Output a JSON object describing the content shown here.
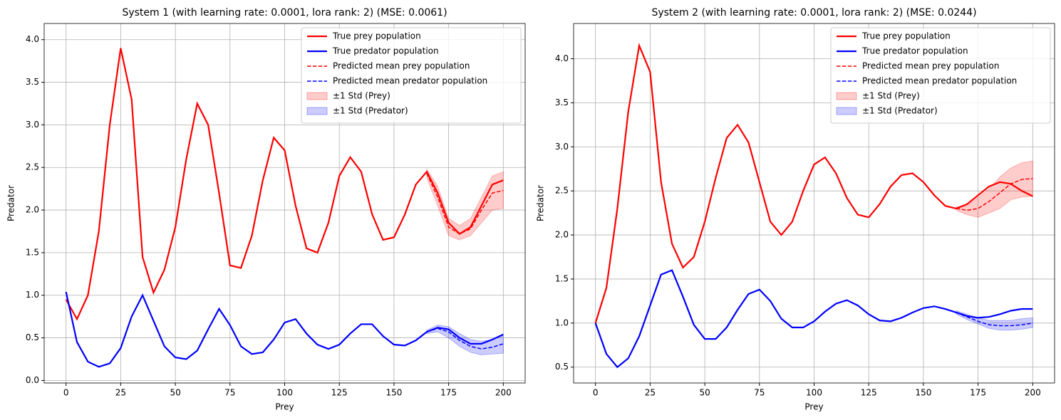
{
  "chart_data": [
    {
      "type": "line",
      "title": "System 1 (with learning rate: 0.0001, lora rank: 2) (MSE: 0.0061)",
      "xlabel": "Prey",
      "ylabel": "Predator",
      "x": [
        0,
        5,
        10,
        15,
        20,
        25,
        30,
        35,
        40,
        45,
        50,
        55,
        60,
        65,
        70,
        75,
        80,
        85,
        90,
        95,
        100,
        105,
        110,
        115,
        120,
        125,
        130,
        135,
        140,
        145,
        150,
        155,
        160,
        165,
        170,
        175,
        180,
        185,
        190,
        195,
        200
      ],
      "xlim": [
        -10,
        210
      ],
      "xticks": [
        0,
        25,
        50,
        75,
        100,
        125,
        150,
        175,
        200
      ],
      "ylim": [
        -0.03,
        4.19
      ],
      "yticks": [
        {
          "value": 0,
          "label": "0.0"
        },
        {
          "value": 0.5,
          "label": "0.5"
        },
        {
          "value": 1,
          "label": "1.0"
        },
        {
          "value": 1.5,
          "label": "1.5"
        },
        {
          "value": 2,
          "label": "2.0"
        },
        {
          "value": 2.5,
          "label": "2.5"
        },
        {
          "value": 3,
          "label": "3.0"
        },
        {
          "value": 3.5,
          "label": "3.5"
        },
        {
          "value": 4,
          "label": "4.0"
        }
      ],
      "grid": true,
      "legend": "upper right",
      "series": [
        {
          "name": "True prey population",
          "color": "#ff0000",
          "style": "solid",
          "values": [
            0.95,
            0.72,
            1.0,
            1.75,
            3.0,
            3.9,
            3.3,
            1.45,
            1.03,
            1.3,
            1.8,
            2.6,
            3.25,
            3.0,
            2.2,
            1.35,
            1.32,
            1.7,
            2.35,
            2.85,
            2.7,
            2.05,
            1.55,
            1.5,
            1.85,
            2.4,
            2.62,
            2.45,
            1.95,
            1.65,
            1.68,
            1.95,
            2.3,
            2.45,
            2.2,
            1.85,
            1.72,
            1.8,
            2.05,
            2.3,
            2.35
          ]
        },
        {
          "name": "True predator population",
          "color": "#0000ff",
          "style": "solid",
          "values": [
            1.04,
            0.45,
            0.22,
            0.16,
            0.2,
            0.38,
            0.75,
            1.0,
            0.7,
            0.4,
            0.27,
            0.25,
            0.35,
            0.6,
            0.84,
            0.65,
            0.4,
            0.31,
            0.33,
            0.48,
            0.68,
            0.72,
            0.55,
            0.42,
            0.37,
            0.42,
            0.55,
            0.66,
            0.66,
            0.52,
            0.42,
            0.41,
            0.47,
            0.57,
            0.62,
            0.6,
            0.5,
            0.43,
            0.43,
            0.48,
            0.54
          ]
        },
        {
          "name": "Predicted mean prey population",
          "color": "#ff0000",
          "style": "dashed",
          "values": [
            null,
            null,
            null,
            null,
            null,
            null,
            null,
            null,
            null,
            null,
            null,
            null,
            null,
            null,
            null,
            null,
            null,
            null,
            null,
            null,
            null,
            null,
            null,
            null,
            null,
            null,
            null,
            null,
            null,
            null,
            null,
            null,
            null,
            2.43,
            2.15,
            1.8,
            1.72,
            1.78,
            2.0,
            2.2,
            2.23
          ]
        },
        {
          "name": "Predicted mean predator population",
          "color": "#0000ff",
          "style": "dashed",
          "values": [
            null,
            null,
            null,
            null,
            null,
            null,
            null,
            null,
            null,
            null,
            null,
            null,
            null,
            null,
            null,
            null,
            null,
            null,
            null,
            null,
            null,
            null,
            null,
            null,
            null,
            null,
            null,
            null,
            null,
            null,
            null,
            null,
            null,
            0.57,
            0.61,
            0.57,
            0.47,
            0.4,
            0.37,
            0.39,
            0.43
          ]
        }
      ],
      "bands": [
        {
          "name": "±1 Std (Prey)",
          "color": "#ff0000",
          "lower": [
            null,
            null,
            null,
            null,
            null,
            null,
            null,
            null,
            null,
            null,
            null,
            null,
            null,
            null,
            null,
            null,
            null,
            null,
            null,
            null,
            null,
            null,
            null,
            null,
            null,
            null,
            null,
            null,
            null,
            null,
            null,
            null,
            null,
            2.38,
            2.05,
            1.7,
            1.65,
            1.7,
            1.85,
            2.0,
            2.02
          ],
          "upper": [
            null,
            null,
            null,
            null,
            null,
            null,
            null,
            null,
            null,
            null,
            null,
            null,
            null,
            null,
            null,
            null,
            null,
            null,
            null,
            null,
            null,
            null,
            null,
            null,
            null,
            null,
            null,
            null,
            null,
            null,
            null,
            null,
            null,
            2.48,
            2.28,
            1.9,
            1.82,
            1.9,
            2.15,
            2.4,
            2.45
          ]
        },
        {
          "name": "±1 Std (Predator)",
          "color": "#0000ff",
          "lower": [
            null,
            null,
            null,
            null,
            null,
            null,
            null,
            null,
            null,
            null,
            null,
            null,
            null,
            null,
            null,
            null,
            null,
            null,
            null,
            null,
            null,
            null,
            null,
            null,
            null,
            null,
            null,
            null,
            null,
            null,
            null,
            null,
            null,
            0.55,
            0.57,
            0.5,
            0.4,
            0.33,
            0.3,
            0.31,
            0.32
          ],
          "upper": [
            null,
            null,
            null,
            null,
            null,
            null,
            null,
            null,
            null,
            null,
            null,
            null,
            null,
            null,
            null,
            null,
            null,
            null,
            null,
            null,
            null,
            null,
            null,
            null,
            null,
            null,
            null,
            null,
            null,
            null,
            null,
            null,
            null,
            0.59,
            0.65,
            0.63,
            0.55,
            0.48,
            0.46,
            0.48,
            0.53
          ]
        }
      ]
    },
    {
      "type": "line",
      "title": "System 2 (with learning rate: 0.0001, lora rank: 2) (MSE: 0.0244)",
      "xlabel": "Prey",
      "ylabel": "Predator",
      "x": [
        0,
        5,
        10,
        15,
        20,
        25,
        30,
        35,
        40,
        45,
        50,
        55,
        60,
        65,
        70,
        75,
        80,
        85,
        90,
        95,
        100,
        105,
        110,
        115,
        120,
        125,
        130,
        135,
        140,
        145,
        150,
        155,
        160,
        165,
        170,
        175,
        180,
        185,
        190,
        195,
        200
      ],
      "xlim": [
        -10,
        210
      ],
      "xticks": [
        0,
        25,
        50,
        75,
        100,
        125,
        150,
        175,
        200
      ],
      "ylim": [
        0.32,
        4.4
      ],
      "yticks": [
        {
          "value": 0.5,
          "label": "0.5"
        },
        {
          "value": 1,
          "label": "1.0"
        },
        {
          "value": 1.5,
          "label": "1.5"
        },
        {
          "value": 2,
          "label": "2.0"
        },
        {
          "value": 2.5,
          "label": "2.5"
        },
        {
          "value": 3,
          "label": "3.0"
        },
        {
          "value": 3.5,
          "label": "3.5"
        },
        {
          "value": 4,
          "label": "4.0"
        }
      ],
      "grid": true,
      "legend": "upper right",
      "series": [
        {
          "name": "True prey population",
          "color": "#ff0000",
          "style": "solid",
          "values": [
            1.0,
            1.4,
            2.3,
            3.4,
            4.15,
            3.85,
            2.6,
            1.9,
            1.63,
            1.75,
            2.15,
            2.65,
            3.1,
            3.25,
            3.05,
            2.6,
            2.15,
            2.0,
            2.15,
            2.5,
            2.8,
            2.88,
            2.7,
            2.42,
            2.23,
            2.2,
            2.35,
            2.55,
            2.68,
            2.7,
            2.6,
            2.45,
            2.33,
            2.3,
            2.35,
            2.45,
            2.55,
            2.6,
            2.58,
            2.5,
            2.44
          ]
        },
        {
          "name": "True predator population",
          "color": "#0000ff",
          "style": "solid",
          "values": [
            1.0,
            0.65,
            0.5,
            0.6,
            0.85,
            1.2,
            1.55,
            1.6,
            1.3,
            0.98,
            0.82,
            0.82,
            0.95,
            1.15,
            1.33,
            1.38,
            1.25,
            1.05,
            0.95,
            0.95,
            1.02,
            1.13,
            1.22,
            1.26,
            1.2,
            1.1,
            1.03,
            1.02,
            1.06,
            1.12,
            1.17,
            1.19,
            1.16,
            1.12,
            1.08,
            1.06,
            1.07,
            1.1,
            1.14,
            1.16,
            1.16
          ]
        },
        {
          "name": "Predicted mean prey population",
          "color": "#ff0000",
          "style": "dashed",
          "values": [
            null,
            null,
            null,
            null,
            null,
            null,
            null,
            null,
            null,
            null,
            null,
            null,
            null,
            null,
            null,
            null,
            null,
            null,
            null,
            null,
            null,
            null,
            null,
            null,
            null,
            null,
            null,
            null,
            null,
            null,
            null,
            null,
            null,
            2.3,
            2.28,
            2.3,
            2.38,
            2.48,
            2.58,
            2.63,
            2.64
          ]
        },
        {
          "name": "Predicted mean predator population",
          "color": "#0000ff",
          "style": "dashed",
          "values": [
            null,
            null,
            null,
            null,
            null,
            null,
            null,
            null,
            null,
            null,
            null,
            null,
            null,
            null,
            null,
            null,
            null,
            null,
            null,
            null,
            null,
            null,
            null,
            null,
            null,
            null,
            null,
            null,
            null,
            null,
            null,
            null,
            null,
            1.12,
            1.07,
            1.02,
            0.98,
            0.97,
            0.97,
            0.98,
            1.0
          ]
        }
      ],
      "bands": [
        {
          "name": "±1 Std (Prey)",
          "color": "#ff0000",
          "lower": [
            null,
            null,
            null,
            null,
            null,
            null,
            null,
            null,
            null,
            null,
            null,
            null,
            null,
            null,
            null,
            null,
            null,
            null,
            null,
            null,
            null,
            null,
            null,
            null,
            null,
            null,
            null,
            null,
            null,
            null,
            null,
            null,
            null,
            2.28,
            2.23,
            2.2,
            2.25,
            2.3,
            2.4,
            2.43,
            2.44
          ],
          "upper": [
            null,
            null,
            null,
            null,
            null,
            null,
            null,
            null,
            null,
            null,
            null,
            null,
            null,
            null,
            null,
            null,
            null,
            null,
            null,
            null,
            null,
            null,
            null,
            null,
            null,
            null,
            null,
            null,
            null,
            null,
            null,
            null,
            null,
            2.32,
            2.33,
            2.42,
            2.52,
            2.66,
            2.76,
            2.82,
            2.84
          ]
        },
        {
          "name": "±1 Std (Predator)",
          "color": "#0000ff",
          "lower": [
            null,
            null,
            null,
            null,
            null,
            null,
            null,
            null,
            null,
            null,
            null,
            null,
            null,
            null,
            null,
            null,
            null,
            null,
            null,
            null,
            null,
            null,
            null,
            null,
            null,
            null,
            null,
            null,
            null,
            null,
            null,
            null,
            null,
            1.1,
            1.04,
            0.99,
            0.94,
            0.92,
            0.92,
            0.93,
            0.95
          ],
          "upper": [
            null,
            null,
            null,
            null,
            null,
            null,
            null,
            null,
            null,
            null,
            null,
            null,
            null,
            null,
            null,
            null,
            null,
            null,
            null,
            null,
            null,
            null,
            null,
            null,
            null,
            null,
            null,
            null,
            null,
            null,
            null,
            null,
            null,
            1.14,
            1.1,
            1.06,
            1.03,
            1.03,
            1.03,
            1.05,
            1.06
          ]
        }
      ]
    }
  ]
}
